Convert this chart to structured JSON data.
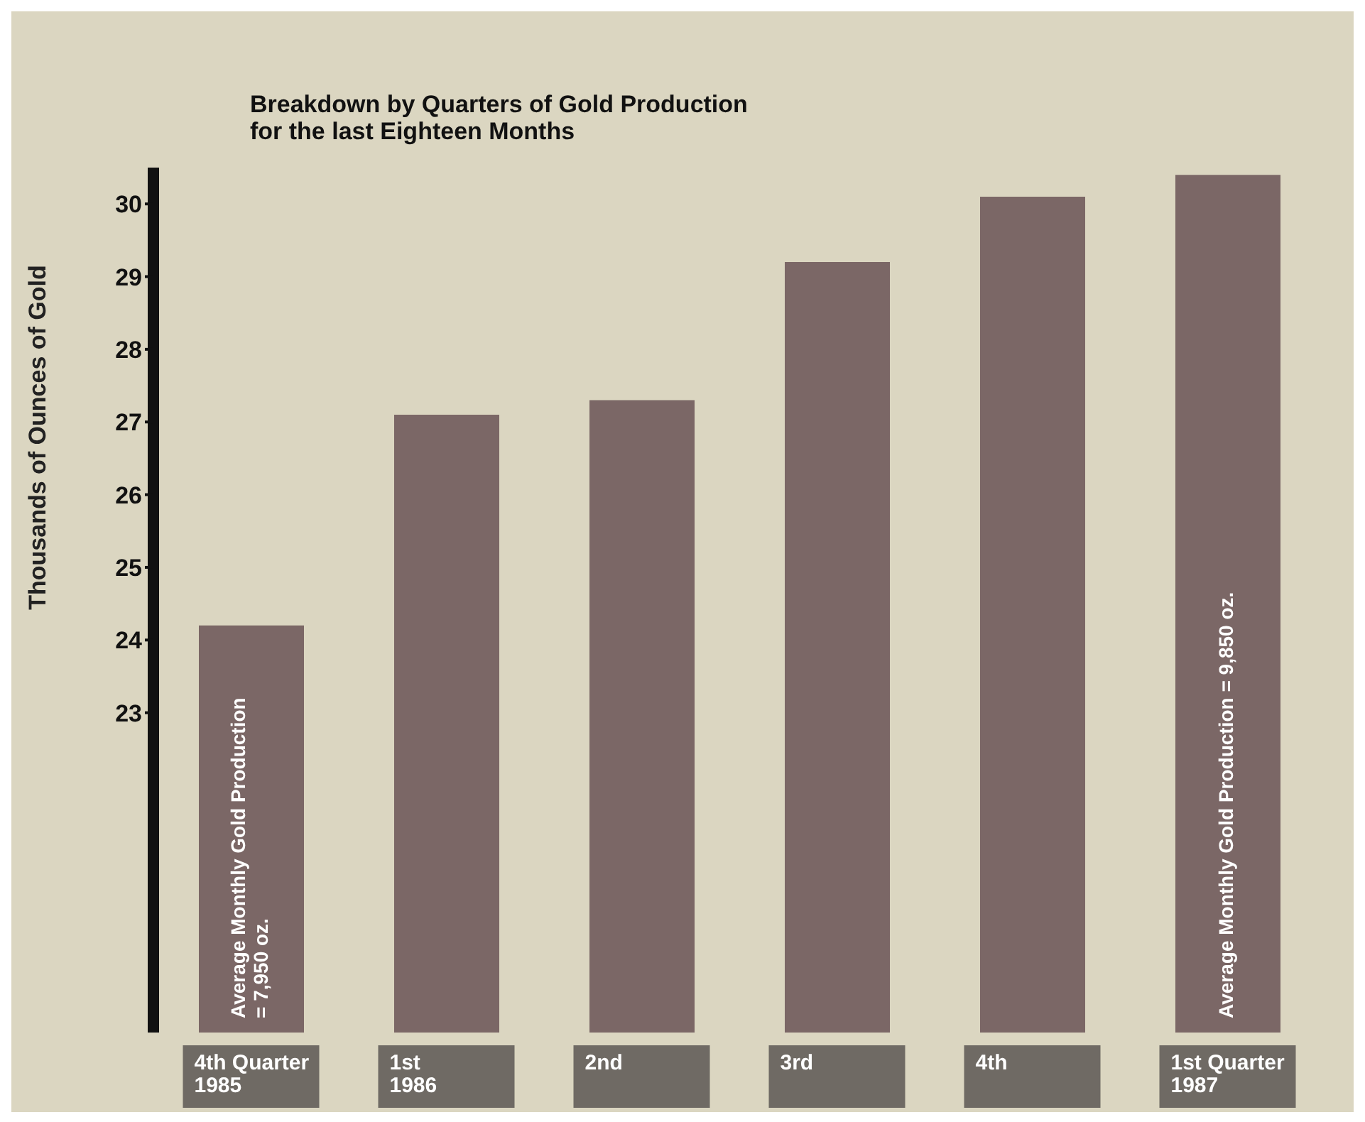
{
  "chart_data": {
    "type": "bar",
    "title": "Breakdown by Quarters of Gold Production\nfor the last Eighteen Months",
    "ylabel": "Thousands of Ounces of Gold",
    "categories": [
      "4th Quarter\n1985",
      "1st\n1986",
      "2nd",
      "3rd",
      "4th",
      "1st Quarter\n1987"
    ],
    "values": [
      24.2,
      27.1,
      27.3,
      29.2,
      30.1,
      30.4
    ],
    "color": "#7b6766",
    "ylim": [
      18.6,
      30.5
    ],
    "yticks": [
      23,
      24,
      25,
      26,
      27,
      28,
      29,
      30
    ],
    "grid": false,
    "legend": false,
    "annotations": [
      "Average Monthly Gold Production = 7,950 oz.",
      "Average Monthly Gold Production = 9,850 oz."
    ]
  }
}
